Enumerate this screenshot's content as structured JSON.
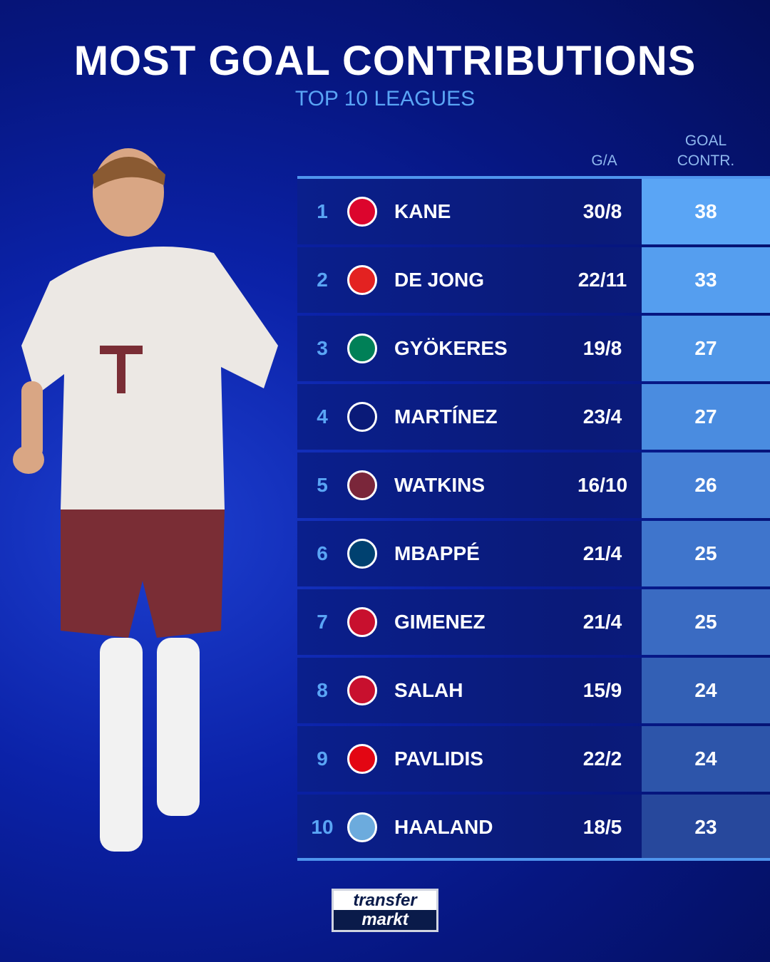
{
  "title": "MOST GOAL CONTRIBUTIONS",
  "subtitle": "TOP 10 LEAGUES",
  "headers": {
    "ga": "G/A",
    "contr_line1": "GOAL",
    "contr_line2": "CONTR."
  },
  "rows": [
    {
      "rank": "1",
      "name": "KANE",
      "ga": "30/8",
      "contr": "38",
      "club_icon": "bayern-crest",
      "crest_color": "#dc052d",
      "value_color": "#5aa5f5"
    },
    {
      "rank": "2",
      "name": "DE JONG",
      "ga": "22/11",
      "contr": "33",
      "club_icon": "psv-crest",
      "crest_color": "#e32221",
      "value_color": "#559eef"
    },
    {
      "rank": "3",
      "name": "GYÖKERES",
      "ga": "19/8",
      "contr": "27",
      "club_icon": "sporting-crest",
      "crest_color": "#008057",
      "value_color": "#5097e8"
    },
    {
      "rank": "4",
      "name": "MARTÍNEZ",
      "ga": "23/4",
      "contr": "27",
      "club_icon": "inter-crest",
      "crest_color": "#0a1a78",
      "value_color": "#4a8ce0"
    },
    {
      "rank": "5",
      "name": "WATKINS",
      "ga": "16/10",
      "contr": "26",
      "club_icon": "aston-villa-crest",
      "crest_color": "#7a263a",
      "value_color": "#4580d6"
    },
    {
      "rank": "6",
      "name": "MBAPPÉ",
      "ga": "21/4",
      "contr": "25",
      "club_icon": "psg-crest",
      "crest_color": "#004170",
      "value_color": "#3f75cc"
    },
    {
      "rank": "7",
      "name": "GIMENEZ",
      "ga": "21/4",
      "contr": "25",
      "club_icon": "feyenoord-crest",
      "crest_color": "#c8102e",
      "value_color": "#3a6bc2"
    },
    {
      "rank": "8",
      "name": "SALAH",
      "ga": "15/9",
      "contr": "24",
      "club_icon": "liverpool-crest",
      "crest_color": "#c8102e",
      "value_color": "#3360b5"
    },
    {
      "rank": "9",
      "name": "PAVLIDIS",
      "ga": "22/2",
      "contr": "24",
      "club_icon": "az-crest",
      "crest_color": "#e30613",
      "value_color": "#2d55aa"
    },
    {
      "rank": "10",
      "name": "HAALAND",
      "ga": "18/5",
      "contr": "23",
      "club_icon": "man-city-crest",
      "crest_color": "#6cabdd",
      "value_color": "#27489c"
    }
  ],
  "logo": {
    "line1": "transfer",
    "line2": "markt"
  },
  "colors": {
    "accent": "#5aa5f5",
    "background": "#0b22a8"
  }
}
